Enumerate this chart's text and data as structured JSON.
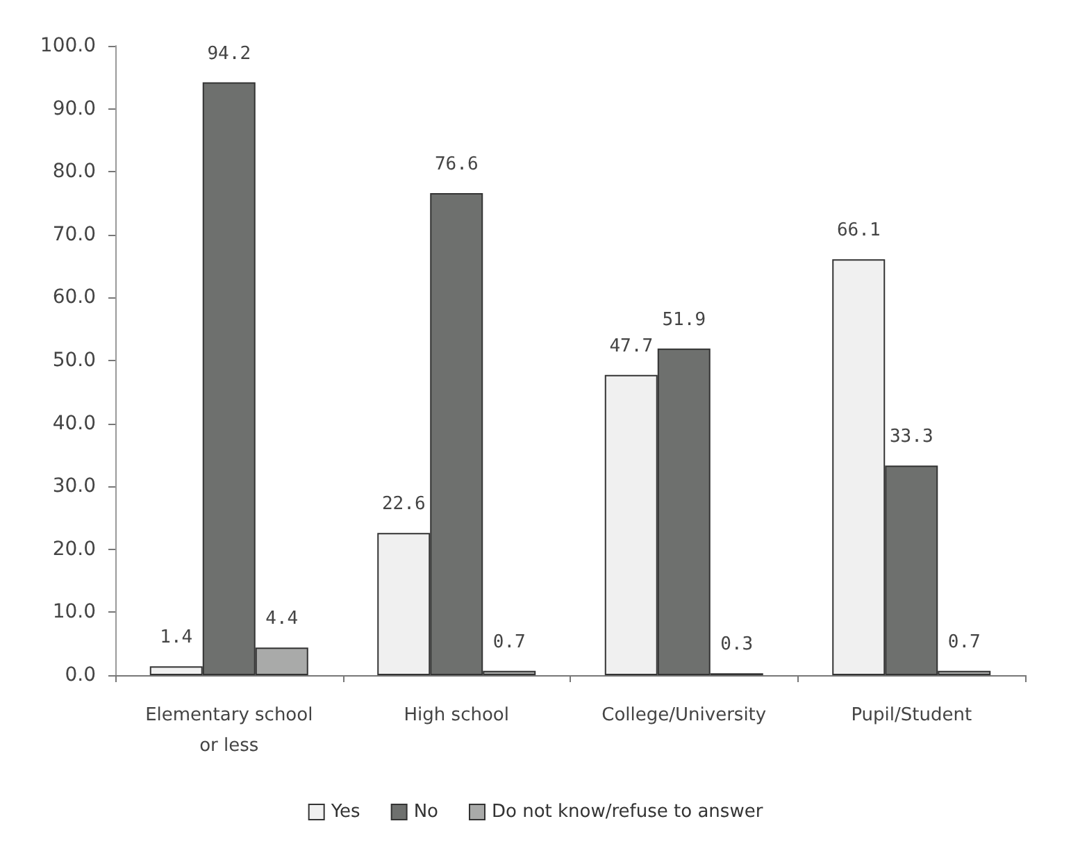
{
  "chart_data": {
    "type": "bar",
    "categories": [
      "Elementary school\nor less",
      "High school",
      "College/University",
      "Pupil/Student"
    ],
    "series": [
      {
        "name": "Yes",
        "color": "#f0f0f0",
        "values": [
          1.4,
          22.6,
          47.7,
          66.1
        ]
      },
      {
        "name": "No",
        "color": "#6e706e",
        "values": [
          94.2,
          76.6,
          51.9,
          33.3
        ]
      },
      {
        "name": "Do not know/refuse to answer",
        "color": "#a9aaa9",
        "values": [
          4.4,
          0.7,
          0.3,
          0.7
        ]
      }
    ],
    "ylim": [
      0,
      100
    ],
    "yticks": [
      {
        "value": 0,
        "label": "0.0"
      },
      {
        "value": 10,
        "label": "10.0"
      },
      {
        "value": 20,
        "label": "20.0"
      },
      {
        "value": 30,
        "label": "30.0"
      },
      {
        "value": 40,
        "label": "40.0"
      },
      {
        "value": 50,
        "label": "50.0"
      },
      {
        "value": 60,
        "label": "60.0"
      },
      {
        "value": 70,
        "label": "70.0"
      },
      {
        "value": 80,
        "label": "80.0"
      },
      {
        "value": 90,
        "label": "90.0"
      },
      {
        "value": 100,
        "label": "100.0"
      }
    ],
    "data_labels": true,
    "grid": false,
    "legend": "bottom"
  }
}
